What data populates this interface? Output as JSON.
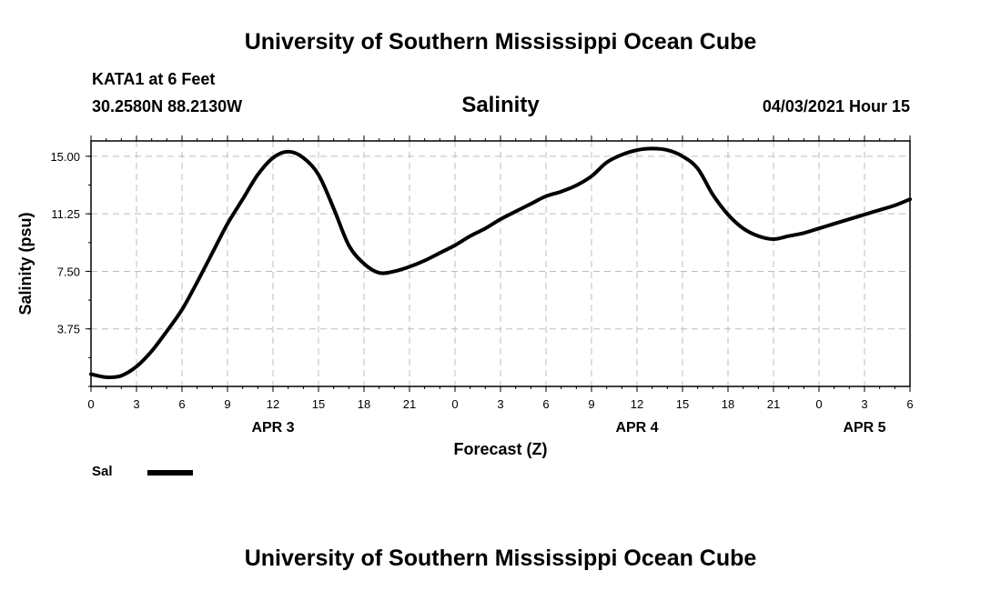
{
  "header": {
    "top_title": "University of Southern Mississippi Ocean Cube",
    "station": "KATA1 at 6 Feet",
    "coords": "30.2580N  88.2130W",
    "variable": "Salinity",
    "datetime": "04/03/2021 Hour 15"
  },
  "footer": {
    "bottom_title": "University of Southern Mississippi Ocean Cube"
  },
  "legend": {
    "label": "Sal"
  },
  "chart_data": {
    "type": "line",
    "xlabel": "Forecast (Z)",
    "ylabel": "Salinity (psu)",
    "ylim": [
      0,
      16
    ],
    "xlim": [
      0,
      54
    ],
    "yticks": [
      "15.00",
      "11.25",
      "7.50",
      "3.75"
    ],
    "ytick_values": [
      15,
      11.25,
      7.5,
      3.75
    ],
    "xtick_labels": [
      "0",
      "3",
      "6",
      "9",
      "12",
      "15",
      "18",
      "21",
      "0",
      "3",
      "6",
      "9",
      "12",
      "15",
      "18",
      "21",
      "0",
      "3",
      "6"
    ],
    "date_labels": [
      {
        "label": "APR 3",
        "hour": 12
      },
      {
        "label": "APR 4",
        "hour": 36
      },
      {
        "label": "APR 5",
        "hour": 51
      }
    ],
    "grid": true,
    "line_color": "#000000",
    "series": [
      {
        "name": "Sal",
        "x": [
          0,
          1,
          2,
          3,
          4,
          5,
          6,
          7,
          8,
          9,
          10,
          11,
          12,
          13,
          14,
          15,
          16,
          17,
          18,
          19,
          20,
          21,
          22,
          23,
          24,
          25,
          26,
          27,
          28,
          29,
          30,
          31,
          32,
          33,
          34,
          35,
          36,
          37,
          38,
          39,
          40,
          41,
          42,
          43,
          44,
          45,
          46,
          47,
          48,
          49,
          50,
          51,
          52,
          53,
          54
        ],
        "y": [
          0.8,
          0.6,
          0.7,
          1.3,
          2.3,
          3.6,
          5.0,
          6.8,
          8.7,
          10.6,
          12.2,
          13.8,
          14.9,
          15.3,
          14.9,
          13.8,
          11.6,
          9.2,
          8.0,
          7.4,
          7.5,
          7.8,
          8.2,
          8.7,
          9.2,
          9.8,
          10.3,
          10.9,
          11.4,
          11.9,
          12.4,
          12.7,
          13.1,
          13.7,
          14.6,
          15.1,
          15.4,
          15.5,
          15.4,
          15.0,
          14.2,
          12.5,
          11.2,
          10.3,
          9.8,
          9.6,
          9.8,
          10.0,
          10.3,
          10.6,
          10.9,
          11.2,
          11.5,
          11.8,
          12.2
        ]
      }
    ]
  }
}
